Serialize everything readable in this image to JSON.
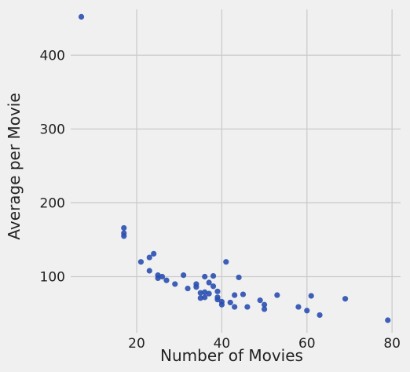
{
  "chart_data": {
    "type": "scatter",
    "title": "",
    "xlabel": "Number of Movies",
    "ylabel": "Average per Movie",
    "xlim": [
      4.5,
      82
    ],
    "ylim": [
      24,
      462
    ],
    "x_ticks": [
      20,
      40,
      60,
      80
    ],
    "y_ticks": [
      100,
      200,
      300,
      400
    ],
    "x_tick_labels": [
      "20",
      "40",
      "60",
      "80"
    ],
    "y_tick_labels": [
      "100",
      "200",
      "300",
      "400"
    ],
    "grid": true,
    "legend": "none",
    "point_color": "#2a4fb0",
    "background_color": "#f0f0f0",
    "grid_color": "#cbcbcb",
    "series": [
      {
        "points": [
          [
            7,
            452
          ],
          [
            17,
            166
          ],
          [
            17,
            159
          ],
          [
            17,
            155
          ],
          [
            21,
            120
          ],
          [
            23,
            126
          ],
          [
            23,
            108
          ],
          [
            24,
            131
          ],
          [
            25,
            102
          ],
          [
            25,
            98
          ],
          [
            26,
            100
          ],
          [
            27,
            95
          ],
          [
            29,
            90
          ],
          [
            31,
            102
          ],
          [
            32,
            84
          ],
          [
            34,
            90
          ],
          [
            34,
            86
          ],
          [
            35,
            78
          ],
          [
            35,
            71
          ],
          [
            36,
            100
          ],
          [
            36,
            79
          ],
          [
            36,
            72
          ],
          [
            37,
            92
          ],
          [
            37,
            77
          ],
          [
            38,
            101
          ],
          [
            38,
            87
          ],
          [
            39,
            80
          ],
          [
            39,
            72
          ],
          [
            39,
            69
          ],
          [
            40,
            66
          ],
          [
            40,
            62
          ],
          [
            41,
            120
          ],
          [
            42,
            65
          ],
          [
            43,
            75
          ],
          [
            43,
            59
          ],
          [
            44,
            99
          ],
          [
            45,
            76
          ],
          [
            46,
            59
          ],
          [
            49,
            68
          ],
          [
            50,
            62
          ],
          [
            50,
            56
          ],
          [
            53,
            75
          ],
          [
            58,
            59
          ],
          [
            60,
            54
          ],
          [
            61,
            74
          ],
          [
            63,
            48
          ],
          [
            69,
            70
          ],
          [
            79,
            41
          ]
        ]
      }
    ]
  }
}
